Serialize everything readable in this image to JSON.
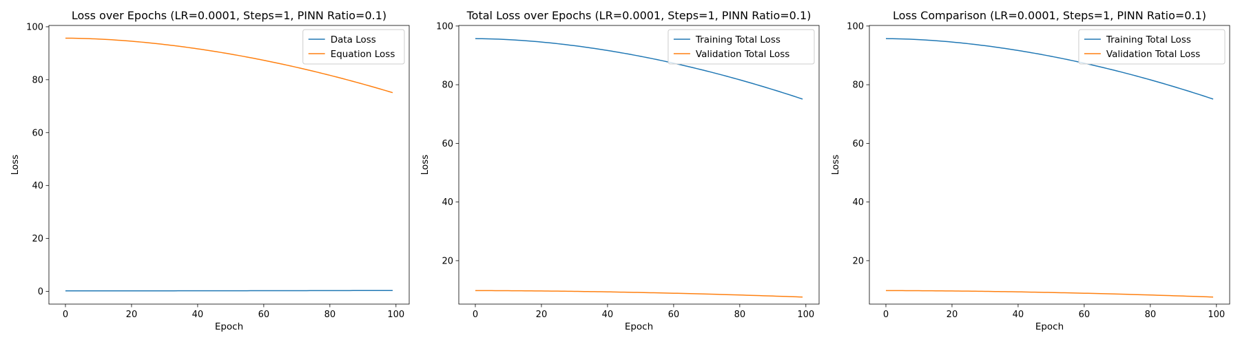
{
  "chart_data": [
    {
      "type": "line",
      "title": "Loss over Epochs (LR=0.0001, Steps=1, PINN Ratio=0.1)",
      "xlabel": "Epoch",
      "ylabel": "Loss",
      "xlim": [
        -5,
        104
      ],
      "ylim": [
        -4.8,
        100.5
      ],
      "xticks": [
        0,
        20,
        40,
        60,
        80,
        100
      ],
      "yticks": [
        0,
        20,
        40,
        60,
        80,
        100
      ],
      "grid": false,
      "legend": "top-right",
      "series": [
        {
          "name": "Data Loss",
          "color": "#1f77b4",
          "start": 0.2,
          "end": 0.35
        },
        {
          "name": "Equation Loss",
          "color": "#ff7f0e",
          "start": 95.7,
          "end": 75.1
        }
      ]
    },
    {
      "type": "line",
      "title": "Total Loss over Epochs (LR=0.0001, Steps=1, PINN Ratio=0.1)",
      "xlabel": "Epoch",
      "ylabel": "Loss",
      "xlim": [
        -5,
        104
      ],
      "ylim": [
        5.2,
        100.2
      ],
      "xticks": [
        0,
        20,
        40,
        60,
        80,
        100
      ],
      "yticks": [
        20,
        40,
        60,
        80,
        100
      ],
      "grid": false,
      "legend": "top-right",
      "series": [
        {
          "name": "Training Total Loss",
          "color": "#1f77b4",
          "start": 95.7,
          "end": 75.1
        },
        {
          "name": "Validation Total Loss",
          "color": "#ff7f0e",
          "start": 9.8,
          "end": 7.6
        }
      ]
    },
    {
      "type": "line",
      "title": "Loss Comparison (LR=0.0001, Steps=1, PINN Ratio=0.1)",
      "xlabel": "Epoch",
      "ylabel": "Loss",
      "xlim": [
        -5,
        104
      ],
      "ylim": [
        5.2,
        100.2
      ],
      "xticks": [
        0,
        20,
        40,
        60,
        80,
        100
      ],
      "yticks": [
        20,
        40,
        60,
        80,
        100
      ],
      "grid": false,
      "legend": "top-right",
      "series": [
        {
          "name": "Training Total Loss",
          "color": "#1f77b4",
          "start": 95.7,
          "end": 75.1
        },
        {
          "name": "Validation Total Loss",
          "color": "#ff7f0e",
          "start": 9.8,
          "end": 7.6
        }
      ]
    }
  ]
}
